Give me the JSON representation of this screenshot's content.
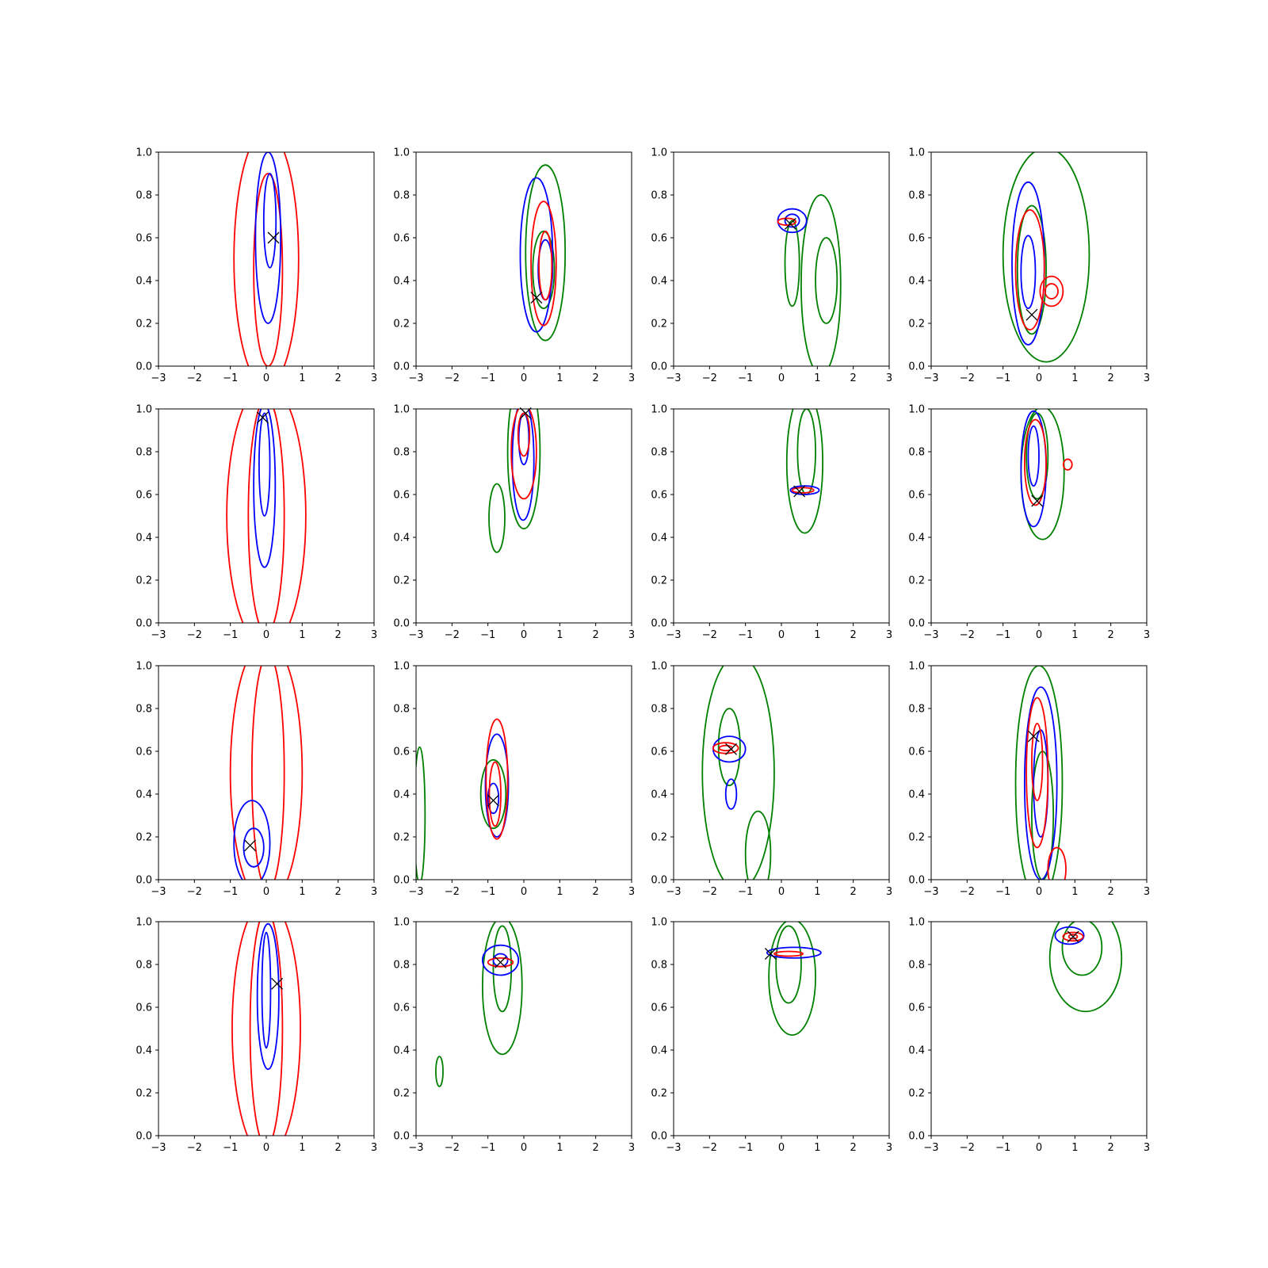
{
  "figure": {
    "rows": 4,
    "cols": 4,
    "x_ticks": [
      "−3",
      "−2",
      "−1",
      "0",
      "1",
      "2",
      "3"
    ],
    "y_ticks": [
      "0.0",
      "0.2",
      "0.4",
      "0.6",
      "0.8",
      "1.0"
    ],
    "colors": {
      "red": "#ff0000",
      "blue": "#0000ff",
      "green": "#008000",
      "marker": "#000000"
    }
  },
  "chart_data": [
    {
      "type": "contour",
      "xlim": [
        -3,
        3
      ],
      "ylim": [
        0,
        1
      ],
      "marker": [
        0.2,
        0.6
      ],
      "contours": [
        {
          "color": "red",
          "cx": 0.0,
          "cy": 0.5,
          "rx": 0.9,
          "ry": 0.6
        },
        {
          "color": "red",
          "cx": 0.05,
          "cy": 0.45,
          "rx": 0.4,
          "ry": 0.45
        },
        {
          "color": "blue",
          "cx": 0.05,
          "cy": 0.6,
          "rx": 0.35,
          "ry": 0.4
        },
        {
          "color": "blue",
          "cx": 0.1,
          "cy": 0.68,
          "rx": 0.17,
          "ry": 0.22
        }
      ]
    },
    {
      "type": "contour",
      "xlim": [
        -3,
        3
      ],
      "ylim": [
        0,
        1
      ],
      "marker": [
        0.35,
        0.32
      ],
      "contours": [
        {
          "color": "green",
          "cx": 0.6,
          "cy": 0.53,
          "rx": 0.55,
          "ry": 0.41
        },
        {
          "color": "green",
          "cx": 0.55,
          "cy": 0.45,
          "rx": 0.3,
          "ry": 0.18
        },
        {
          "color": "blue",
          "cx": 0.35,
          "cy": 0.52,
          "rx": 0.45,
          "ry": 0.36
        },
        {
          "color": "blue",
          "cx": 0.6,
          "cy": 0.45,
          "rx": 0.2,
          "ry": 0.14
        },
        {
          "color": "red",
          "cx": 0.55,
          "cy": 0.48,
          "rx": 0.35,
          "ry": 0.29
        },
        {
          "color": "red",
          "cx": 0.6,
          "cy": 0.47,
          "rx": 0.18,
          "ry": 0.16
        }
      ]
    },
    {
      "type": "contour",
      "xlim": [
        -3,
        3
      ],
      "ylim": [
        0,
        1
      ],
      "marker": [
        0.25,
        0.665
      ],
      "contours": [
        {
          "color": "green",
          "cx": 1.1,
          "cy": 0.38,
          "rx": 0.55,
          "ry": 0.42
        },
        {
          "color": "green",
          "cx": 1.25,
          "cy": 0.4,
          "rx": 0.3,
          "ry": 0.2
        },
        {
          "color": "green",
          "cx": 0.3,
          "cy": 0.48,
          "rx": 0.2,
          "ry": 0.2
        },
        {
          "color": "blue",
          "cx": 0.3,
          "cy": 0.68,
          "rx": 0.4,
          "ry": 0.055
        },
        {
          "color": "blue",
          "cx": 0.3,
          "cy": 0.68,
          "rx": 0.2,
          "ry": 0.03
        },
        {
          "color": "red",
          "cx": 0.15,
          "cy": 0.675,
          "rx": 0.25,
          "ry": 0.016
        }
      ]
    },
    {
      "type": "contour",
      "xlim": [
        -3,
        3
      ],
      "ylim": [
        0,
        1
      ],
      "marker": [
        -0.2,
        0.24
      ],
      "contours": [
        {
          "color": "green",
          "cx": 0.2,
          "cy": 0.52,
          "rx": 1.2,
          "ry": 0.5
        },
        {
          "color": "green",
          "cx": -0.2,
          "cy": 0.45,
          "rx": 0.4,
          "ry": 0.3
        },
        {
          "color": "blue",
          "cx": -0.3,
          "cy": 0.48,
          "rx": 0.45,
          "ry": 0.38
        },
        {
          "color": "blue",
          "cx": -0.3,
          "cy": 0.44,
          "rx": 0.2,
          "ry": 0.17
        },
        {
          "color": "red",
          "cx": -0.25,
          "cy": 0.45,
          "rx": 0.4,
          "ry": 0.28
        },
        {
          "color": "red",
          "cx": 0.35,
          "cy": 0.35,
          "rx": 0.32,
          "ry": 0.07
        },
        {
          "color": "red",
          "cx": 0.35,
          "cy": 0.35,
          "rx": 0.18,
          "ry": 0.035
        }
      ]
    },
    {
      "type": "contour",
      "xlim": [
        -3,
        3
      ],
      "ylim": [
        0,
        1
      ],
      "marker": [
        -0.1,
        0.96
      ],
      "contours": [
        {
          "color": "red",
          "cx": 0.0,
          "cy": 0.5,
          "rx": 1.1,
          "ry": 0.62
        },
        {
          "color": "red",
          "cx": 0.0,
          "cy": 0.5,
          "rx": 0.5,
          "ry": 0.55
        },
        {
          "color": "blue",
          "cx": -0.05,
          "cy": 0.64,
          "rx": 0.3,
          "ry": 0.38
        },
        {
          "color": "blue",
          "cx": -0.05,
          "cy": 0.74,
          "rx": 0.15,
          "ry": 0.24
        }
      ]
    },
    {
      "type": "contour",
      "xlim": [
        -3,
        3
      ],
      "ylim": [
        0,
        1
      ],
      "marker": [
        0.05,
        0.98
      ],
      "contours": [
        {
          "color": "green",
          "cx": 0.0,
          "cy": 0.8,
          "rx": 0.45,
          "ry": 0.36
        },
        {
          "color": "green",
          "cx": -0.75,
          "cy": 0.49,
          "rx": 0.22,
          "ry": 0.16
        },
        {
          "color": "blue",
          "cx": -0.02,
          "cy": 0.76,
          "rx": 0.3,
          "ry": 0.28
        },
        {
          "color": "blue",
          "cx": 0.0,
          "cy": 0.86,
          "rx": 0.14,
          "ry": 0.12
        },
        {
          "color": "red",
          "cx": 0.0,
          "cy": 0.8,
          "rx": 0.35,
          "ry": 0.22
        },
        {
          "color": "red",
          "cx": 0.0,
          "cy": 0.88,
          "rx": 0.16,
          "ry": 0.1
        }
      ]
    },
    {
      "type": "contour",
      "xlim": [
        -3,
        3
      ],
      "ylim": [
        0,
        1
      ],
      "marker": [
        0.5,
        0.615
      ],
      "contours": [
        {
          "color": "green",
          "cx": 0.65,
          "cy": 0.75,
          "rx": 0.5,
          "ry": 0.33
        },
        {
          "color": "green",
          "cx": 0.7,
          "cy": 0.8,
          "rx": 0.25,
          "ry": 0.2
        },
        {
          "color": "blue",
          "cx": 0.65,
          "cy": 0.62,
          "rx": 0.4,
          "ry": 0.02
        },
        {
          "color": "red",
          "cx": 0.6,
          "cy": 0.62,
          "rx": 0.3,
          "ry": 0.012
        }
      ]
    },
    {
      "type": "contour",
      "xlim": [
        -3,
        3
      ],
      "ylim": [
        0,
        1
      ],
      "marker": [
        -0.05,
        0.57
      ],
      "contours": [
        {
          "color": "green",
          "cx": 0.1,
          "cy": 0.7,
          "rx": 0.6,
          "ry": 0.31
        },
        {
          "color": "green",
          "cx": -0.05,
          "cy": 0.78,
          "rx": 0.3,
          "ry": 0.2
        },
        {
          "color": "blue",
          "cx": -0.15,
          "cy": 0.72,
          "rx": 0.35,
          "ry": 0.27
        },
        {
          "color": "blue",
          "cx": -0.15,
          "cy": 0.78,
          "rx": 0.15,
          "ry": 0.14
        },
        {
          "color": "red",
          "cx": -0.1,
          "cy": 0.75,
          "rx": 0.3,
          "ry": 0.2
        },
        {
          "color": "red",
          "cx": 0.8,
          "cy": 0.74,
          "rx": 0.12,
          "ry": 0.025
        }
      ]
    },
    {
      "type": "contour",
      "xlim": [
        -3,
        3
      ],
      "ylim": [
        0,
        1
      ],
      "marker": [
        -0.45,
        0.16
      ],
      "contours": [
        {
          "color": "red",
          "cx": 0.0,
          "cy": 0.5,
          "rx": 1.0,
          "ry": 0.62
        },
        {
          "color": "red",
          "cx": 0.05,
          "cy": 0.5,
          "rx": 0.45,
          "ry": 0.55
        },
        {
          "color": "blue",
          "cx": -0.4,
          "cy": 0.17,
          "rx": 0.5,
          "ry": 0.2
        },
        {
          "color": "blue",
          "cx": -0.35,
          "cy": 0.15,
          "rx": 0.28,
          "ry": 0.09
        }
      ]
    },
    {
      "type": "contour",
      "xlim": [
        -3,
        3
      ],
      "ylim": [
        0,
        1
      ],
      "marker": [
        -0.85,
        0.37
      ],
      "contours": [
        {
          "color": "green",
          "cx": -2.9,
          "cy": 0.3,
          "rx": 0.15,
          "ry": 0.32
        },
        {
          "color": "green",
          "cx": -0.85,
          "cy": 0.4,
          "rx": 0.35,
          "ry": 0.16
        },
        {
          "color": "blue",
          "cx": -0.75,
          "cy": 0.44,
          "rx": 0.32,
          "ry": 0.24
        },
        {
          "color": "blue",
          "cx": -0.85,
          "cy": 0.38,
          "rx": 0.15,
          "ry": 0.07
        },
        {
          "color": "red",
          "cx": -0.75,
          "cy": 0.47,
          "rx": 0.3,
          "ry": 0.28
        },
        {
          "color": "red",
          "cx": -0.8,
          "cy": 0.4,
          "rx": 0.16,
          "ry": 0.15
        }
      ]
    },
    {
      "type": "contour",
      "xlim": [
        -3,
        3
      ],
      "ylim": [
        0,
        1
      ],
      "marker": [
        -1.4,
        0.61
      ],
      "contours": [
        {
          "color": "green",
          "cx": -1.2,
          "cy": 0.5,
          "rx": 1.0,
          "ry": 0.55
        },
        {
          "color": "green",
          "cx": -1.45,
          "cy": 0.62,
          "rx": 0.3,
          "ry": 0.18
        },
        {
          "color": "green",
          "cx": -0.65,
          "cy": 0.12,
          "rx": 0.35,
          "ry": 0.2
        },
        {
          "color": "blue",
          "cx": -1.45,
          "cy": 0.61,
          "rx": 0.45,
          "ry": 0.06
        },
        {
          "color": "blue",
          "cx": -1.4,
          "cy": 0.4,
          "rx": 0.15,
          "ry": 0.07
        },
        {
          "color": "red",
          "cx": -1.55,
          "cy": 0.615,
          "rx": 0.35,
          "ry": 0.025
        },
        {
          "color": "red",
          "cx": -1.55,
          "cy": 0.615,
          "rx": 0.18,
          "ry": 0.012
        }
      ]
    },
    {
      "type": "contour",
      "xlim": [
        -3,
        3
      ],
      "ylim": [
        0,
        1
      ],
      "marker": [
        -0.15,
        0.67
      ],
      "contours": [
        {
          "color": "green",
          "cx": 0.0,
          "cy": 0.45,
          "rx": 0.65,
          "ry": 0.55
        },
        {
          "color": "green",
          "cx": 0.1,
          "cy": 0.3,
          "rx": 0.3,
          "ry": 0.3
        },
        {
          "color": "blue",
          "cx": 0.05,
          "cy": 0.45,
          "rx": 0.45,
          "ry": 0.45
        },
        {
          "color": "blue",
          "cx": 0.05,
          "cy": 0.45,
          "rx": 0.2,
          "ry": 0.25
        },
        {
          "color": "red",
          "cx": -0.05,
          "cy": 0.5,
          "rx": 0.3,
          "ry": 0.35
        },
        {
          "color": "red",
          "cx": -0.05,
          "cy": 0.55,
          "rx": 0.15,
          "ry": 0.18
        },
        {
          "color": "red",
          "cx": 0.5,
          "cy": 0.05,
          "rx": 0.25,
          "ry": 0.1
        }
      ]
    },
    {
      "type": "contour",
      "xlim": [
        -3,
        3
      ],
      "ylim": [
        0,
        1
      ],
      "marker": [
        0.3,
        0.71
      ],
      "contours": [
        {
          "color": "red",
          "cx": 0.0,
          "cy": 0.5,
          "rx": 0.95,
          "ry": 0.6
        },
        {
          "color": "red",
          "cx": 0.0,
          "cy": 0.5,
          "rx": 0.45,
          "ry": 0.55
        },
        {
          "color": "blue",
          "cx": 0.05,
          "cy": 0.65,
          "rx": 0.3,
          "ry": 0.34
        },
        {
          "color": "blue",
          "cx": 0.0,
          "cy": 0.68,
          "rx": 0.12,
          "ry": 0.27
        }
      ]
    },
    {
      "type": "contour",
      "xlim": [
        -3,
        3
      ],
      "ylim": [
        0,
        1
      ],
      "marker": [
        -0.65,
        0.81
      ],
      "contours": [
        {
          "color": "green",
          "cx": -0.6,
          "cy": 0.7,
          "rx": 0.55,
          "ry": 0.32
        },
        {
          "color": "green",
          "cx": -0.6,
          "cy": 0.78,
          "rx": 0.25,
          "ry": 0.2
        },
        {
          "color": "green",
          "cx": -2.35,
          "cy": 0.3,
          "rx": 0.1,
          "ry": 0.07
        },
        {
          "color": "blue",
          "cx": -0.65,
          "cy": 0.82,
          "rx": 0.5,
          "ry": 0.07
        },
        {
          "color": "blue",
          "cx": -0.65,
          "cy": 0.82,
          "rx": 0.2,
          "ry": 0.03
        },
        {
          "color": "red",
          "cx": -0.65,
          "cy": 0.81,
          "rx": 0.35,
          "ry": 0.02
        }
      ]
    },
    {
      "type": "contour",
      "xlim": [
        -3,
        3
      ],
      "ylim": [
        0,
        1
      ],
      "marker": [
        -0.3,
        0.85
      ],
      "contours": [
        {
          "color": "green",
          "cx": 0.3,
          "cy": 0.74,
          "rx": 0.65,
          "ry": 0.27
        },
        {
          "color": "green",
          "cx": 0.2,
          "cy": 0.8,
          "rx": 0.35,
          "ry": 0.18
        },
        {
          "color": "blue",
          "cx": 0.35,
          "cy": 0.855,
          "rx": 0.75,
          "ry": 0.025
        },
        {
          "color": "red",
          "cx": 0.2,
          "cy": 0.85,
          "rx": 0.4,
          "ry": 0.011
        }
      ]
    },
    {
      "type": "contour",
      "xlim": [
        -3,
        3
      ],
      "ylim": [
        0,
        1
      ],
      "marker": [
        0.95,
        0.93
      ],
      "contours": [
        {
          "color": "green",
          "cx": 1.3,
          "cy": 0.83,
          "rx": 1.0,
          "ry": 0.25
        },
        {
          "color": "green",
          "cx": 1.2,
          "cy": 0.88,
          "rx": 0.55,
          "ry": 0.13
        },
        {
          "color": "blue",
          "cx": 0.85,
          "cy": 0.935,
          "rx": 0.4,
          "ry": 0.04
        },
        {
          "color": "red",
          "cx": 0.95,
          "cy": 0.93,
          "rx": 0.28,
          "ry": 0.02
        },
        {
          "color": "red",
          "cx": 0.95,
          "cy": 0.93,
          "rx": 0.12,
          "ry": 0.01
        }
      ]
    }
  ]
}
